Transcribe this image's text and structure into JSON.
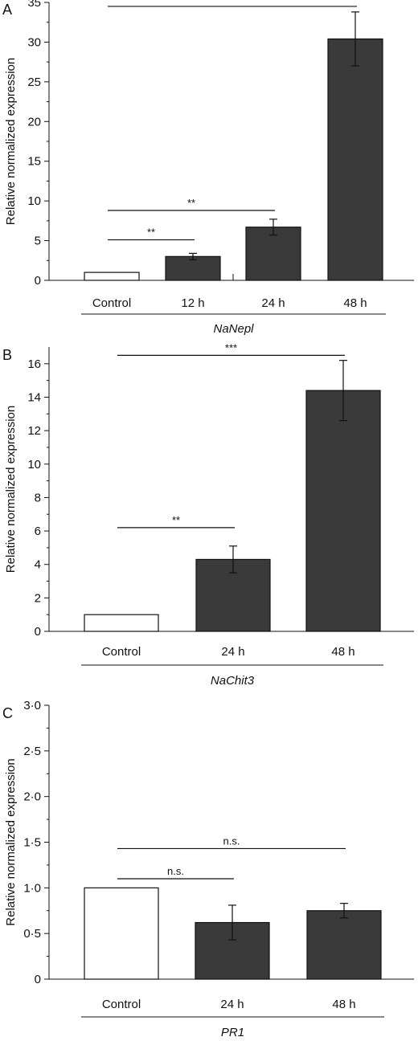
{
  "chart_data": [
    {
      "type": "bar",
      "panel": "A",
      "ylabel": "Relative normalized expression",
      "gene": "NaNepl",
      "ylim": [
        0,
        35
      ],
      "yticks": [
        0,
        5,
        10,
        15,
        20,
        25,
        30,
        35
      ],
      "ytick_labels": [
        "0",
        "5",
        "10",
        "15",
        "20",
        "25",
        "30",
        "35"
      ],
      "categories": [
        "Control",
        "12 h",
        "24 h",
        "48 h"
      ],
      "values": [
        1,
        3,
        6.7,
        30.4
      ],
      "errors": [
        0,
        0.4,
        1.0,
        3.4
      ],
      "bar_colors": [
        "#ffffff",
        "#3a3a3a",
        "#3a3a3a",
        "#3a3a3a"
      ],
      "significance": [
        {
          "from": 0,
          "to": 1,
          "y": 5.1,
          "label": "**"
        },
        {
          "from": 0,
          "to": 2,
          "y": 8.8,
          "label": "**"
        },
        {
          "from": 0,
          "to": 3,
          "y": 34.5,
          "label": "***"
        }
      ]
    },
    {
      "type": "bar",
      "panel": "B",
      "ylabel": "Relative normalized expression",
      "gene": "NaChit3",
      "ylim": [
        0,
        17
      ],
      "yticks": [
        0,
        2,
        4,
        6,
        8,
        10,
        12,
        14,
        16
      ],
      "ytick_labels": [
        "0",
        "2",
        "4",
        "6",
        "8",
        "10",
        "12",
        "14",
        "16"
      ],
      "categories": [
        "Control",
        "24 h",
        "48 h"
      ],
      "values": [
        1,
        4.3,
        14.4
      ],
      "errors": [
        0,
        0.8,
        1.8
      ],
      "bar_colors": [
        "#ffffff",
        "#3a3a3a",
        "#3a3a3a"
      ],
      "significance": [
        {
          "from": 0,
          "to": 1,
          "y": 6.2,
          "label": "**"
        },
        {
          "from": 0,
          "to": 2,
          "y": 16.5,
          "label": "***"
        }
      ]
    },
    {
      "type": "bar",
      "panel": "C",
      "ylabel": "Relative normalized expression",
      "gene": "PR1",
      "ylim": [
        0,
        3.0
      ],
      "yticks": [
        0,
        0.5,
        1.0,
        1.5,
        2.0,
        2.5,
        3.0
      ],
      "ytick_labels": [
        "0",
        "0·5",
        "1·0",
        "1·5",
        "2·0",
        "2·5",
        "3·0"
      ],
      "categories": [
        "Control",
        "24 h",
        "48 h"
      ],
      "values": [
        1.0,
        0.62,
        0.75
      ],
      "errors": [
        0,
        0.19,
        0.08
      ],
      "bar_colors": [
        "#ffffff",
        "#3a3a3a",
        "#3a3a3a"
      ],
      "significance": [
        {
          "from": 0,
          "to": 1,
          "y": 1.1,
          "label": "n.s."
        },
        {
          "from": 0,
          "to": 2,
          "y": 1.43,
          "label": "n.s."
        }
      ]
    }
  ]
}
